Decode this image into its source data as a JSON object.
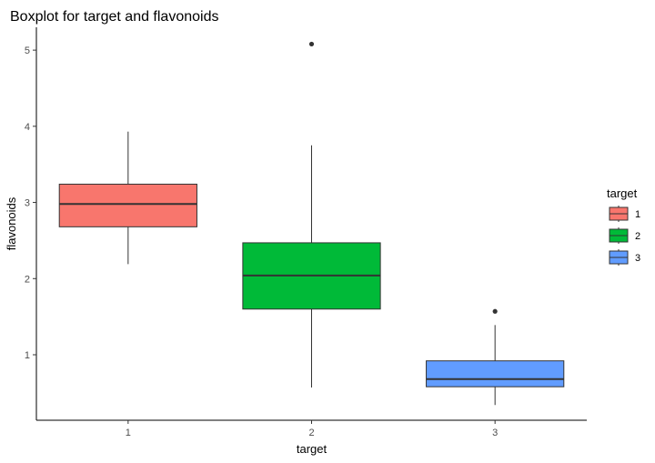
{
  "chart_data": {
    "type": "boxplot",
    "title": "Boxplot for target and flavonoids",
    "xlabel": "target",
    "ylabel": "flavonoids",
    "categories": [
      "1",
      "2",
      "3"
    ],
    "y_ticks": [
      1,
      2,
      3,
      4,
      5
    ],
    "ylim": [
      0.14,
      5.3
    ],
    "grid": false,
    "legend": {
      "title": "target",
      "position": "right",
      "entries": [
        "1",
        "2",
        "3"
      ]
    },
    "series": [
      {
        "category": "1",
        "color": "#F8766D",
        "whisker_low": 2.19,
        "q1": 2.68,
        "median": 2.98,
        "q3": 3.24,
        "whisker_high": 3.93,
        "outliers": []
      },
      {
        "category": "2",
        "color": "#00BA38",
        "whisker_low": 0.57,
        "q1": 1.6,
        "median": 2.04,
        "q3": 2.47,
        "whisker_high": 3.75,
        "outliers": [
          5.08
        ]
      },
      {
        "category": "3",
        "color": "#619CFF",
        "whisker_low": 0.34,
        "q1": 0.58,
        "median": 0.68,
        "q3": 0.92,
        "whisker_high": 1.39,
        "outliers": [
          1.57
        ]
      }
    ]
  }
}
